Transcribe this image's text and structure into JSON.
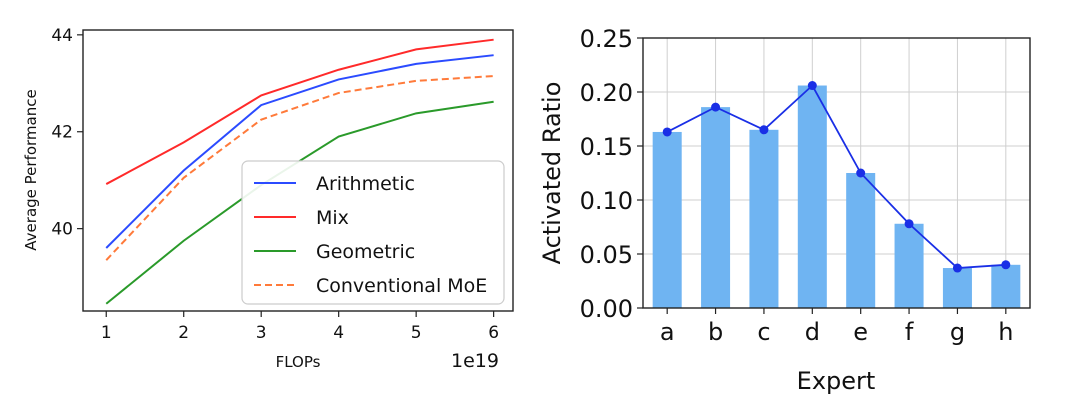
{
  "chart_data": [
    {
      "type": "line",
      "title": "",
      "xlabel": "FLOPs",
      "ylabel": "Average Performance",
      "x_offset_label": "1e19",
      "x": [
        1,
        2,
        3,
        4,
        5,
        6
      ],
      "xlim": [
        0.7,
        6.25
      ],
      "ylim": [
        38.3,
        44.1
      ],
      "xticks": [
        "1",
        "2",
        "3",
        "4",
        "5",
        "6"
      ],
      "yticks": [
        "40",
        "42",
        "44"
      ],
      "ytick_values": [
        40,
        42,
        44
      ],
      "grid": false,
      "legend_position": "lower-right",
      "series": [
        {
          "name": "Arithmetic",
          "color": "#2b4bff",
          "dash": "solid",
          "values": [
            39.6,
            41.2,
            42.55,
            43.08,
            43.4,
            43.58
          ]
        },
        {
          "name": "Mix",
          "color": "#ff2a2a",
          "dash": "solid",
          "values": [
            40.92,
            41.78,
            42.75,
            43.28,
            43.7,
            43.9
          ]
        },
        {
          "name": "Geometric",
          "color": "#2a9a2a",
          "dash": "solid",
          "values": [
            38.45,
            39.75,
            40.9,
            41.9,
            42.38,
            42.62
          ]
        },
        {
          "name": "Conventional MoE",
          "color": "#ff7a3a",
          "dash": "dashed",
          "values": [
            39.35,
            41.05,
            42.25,
            42.8,
            43.05,
            43.15
          ]
        }
      ]
    },
    {
      "type": "bar",
      "title": "",
      "xlabel": "Expert",
      "ylabel": "Activated Ratio",
      "categories": [
        "a",
        "b",
        "c",
        "d",
        "e",
        "f",
        "g",
        "h"
      ],
      "values": [
        0.163,
        0.186,
        0.165,
        0.206,
        0.125,
        0.078,
        0.037,
        0.04
      ],
      "ylim": [
        0,
        0.25
      ],
      "yticks": [
        "0.00",
        "0.05",
        "0.10",
        "0.15",
        "0.20",
        "0.25"
      ],
      "ytick_values": [
        0,
        0.05,
        0.1,
        0.15,
        0.2,
        0.25
      ],
      "grid": true,
      "bar_color": "#6fb4f2",
      "line_color": "#1a2fe6",
      "overlay": "line-with-markers"
    }
  ]
}
